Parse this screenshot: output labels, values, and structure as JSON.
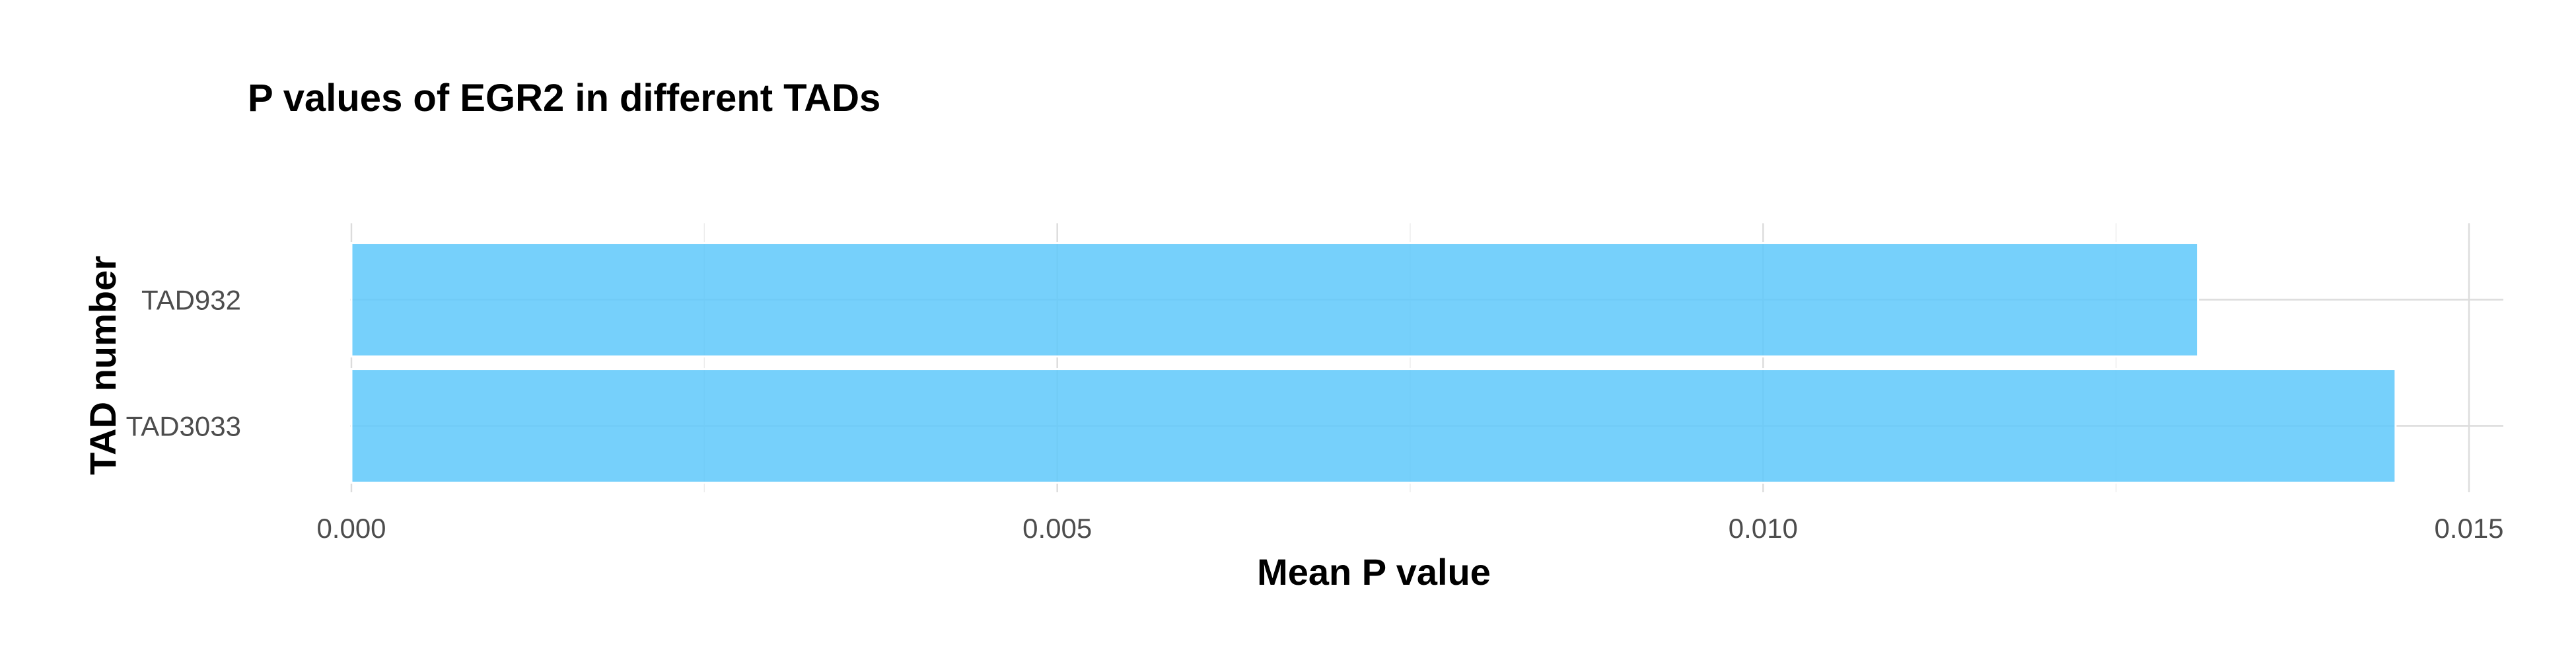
{
  "chart_data": {
    "type": "bar",
    "orientation": "horizontal",
    "title": "P values of EGR2 in different TADs",
    "xlabel": "Mean P value",
    "ylabel": "TAD number",
    "categories": [
      "TAD932",
      "TAD3033"
    ],
    "values": [
      0.01308,
      0.01448
    ],
    "xlim": [
      0,
      0.015
    ],
    "x_ticks": [
      0.0,
      0.005,
      0.01,
      0.015
    ],
    "x_tick_labels": [
      "0.000",
      "0.005",
      "0.010",
      "0.015"
    ],
    "grid": true,
    "legend": "none",
    "bar_color": "#5ec8fa"
  }
}
